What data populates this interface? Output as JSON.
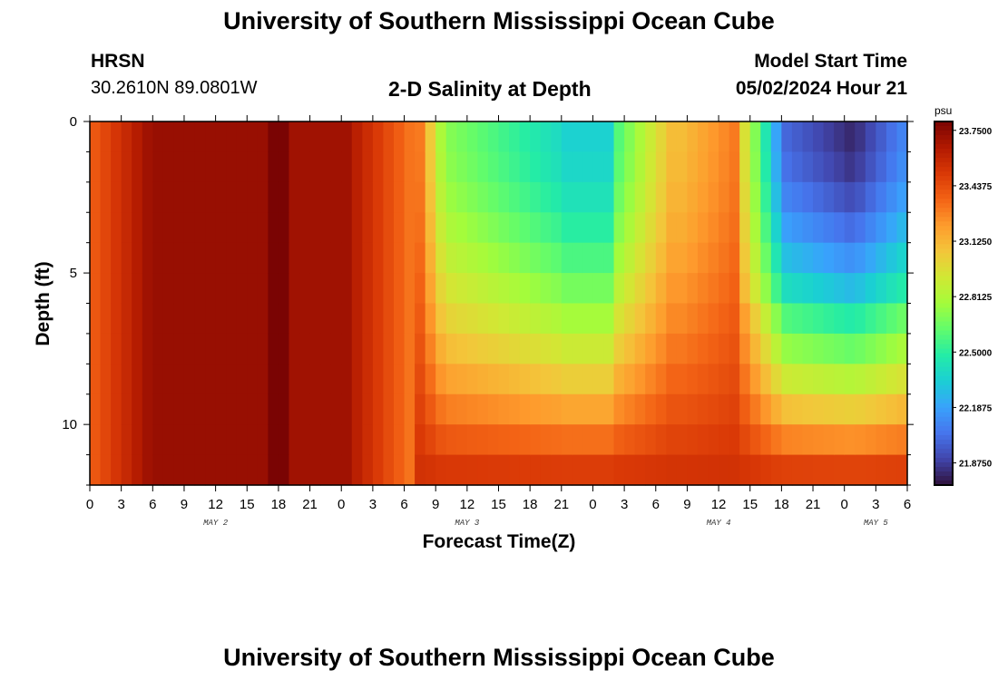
{
  "page": {
    "title_top": "University of Southern Mississippi Ocean Cube",
    "title_bottom": "University of Southern Mississippi Ocean Cube",
    "station": "HRSN",
    "coords": "30.2610N  89.0801W",
    "subtitle": "2-D Salinity at Depth",
    "model_label": "Model Start Time",
    "model_time": "05/02/2024 Hour 21"
  },
  "chart_data": {
    "type": "heatmap",
    "title": "2-D Salinity at Depth",
    "xlabel": "Forecast Time(Z)",
    "ylabel": "Depth (ft)",
    "y_ticks": [
      "0",
      "5",
      "10"
    ],
    "y_range_ft": [
      0,
      12
    ],
    "x_tick_labels": [
      "0",
      "3",
      "6",
      "9",
      "12",
      "15",
      "18",
      "21",
      "0",
      "3",
      "6",
      "9",
      "12",
      "15",
      "18",
      "21",
      "0",
      "3",
      "6",
      "9",
      "12",
      "15",
      "18",
      "21",
      "0",
      "3",
      "6"
    ],
    "day_labels": [
      {
        "text": "MAY 2",
        "tick_index": 4
      },
      {
        "text": "MAY 3",
        "tick_index": 12
      },
      {
        "text": "MAY 4",
        "tick_index": 20
      },
      {
        "text": "MAY 5",
        "tick_index": 25
      }
    ],
    "colorbar": {
      "unit": "psu",
      "min": 21.75,
      "max": 23.8,
      "ticks": [
        "23.7500",
        "23.4375",
        "23.1250",
        "22.8125",
        "22.5000",
        "22.1875",
        "21.8750"
      ]
    },
    "colors": [
      "#30123b",
      "#4145ab",
      "#4675ed",
      "#39a2fc",
      "#1bcfd4",
      "#24eca6",
      "#61fc6c",
      "#a4fc3b",
      "#d1e834",
      "#f3c63a",
      "#fe9b2d",
      "#f36315",
      "#d93806",
      "#b11901",
      "#7a0403"
    ]
  }
}
